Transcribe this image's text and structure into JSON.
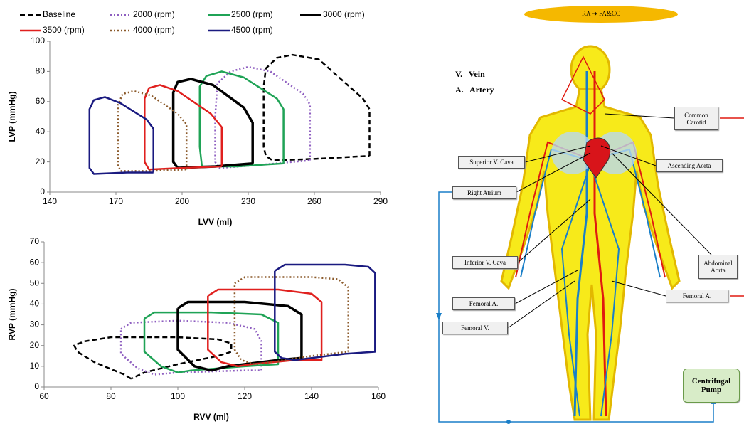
{
  "chart_data": [
    {
      "type": "line",
      "xlabel": "LVV (ml)",
      "ylabel": "LVP (mmHg)",
      "xlim": [
        140,
        290
      ],
      "xticks": [
        140,
        170,
        200,
        230,
        260,
        290
      ],
      "ylim": [
        0,
        100
      ],
      "yticks": [
        0,
        20,
        40,
        60,
        80,
        100
      ],
      "legend": true,
      "series": [
        {
          "name": "Baseline",
          "color": "#000000",
          "dash": "dashed",
          "x": [
            285,
            285,
            282,
            262,
            250,
            243,
            238,
            237,
            237,
            238,
            241,
            260,
            285
          ],
          "values": [
            24,
            55,
            62,
            88,
            91,
            89,
            82,
            70,
            30,
            24,
            21,
            22,
            24
          ]
        },
        {
          "name": "2000 (rpm)",
          "color": "#8e5ec0",
          "dash": "dotted",
          "x": [
            258,
            258,
            255,
            240,
            230,
            222,
            216,
            215,
            215,
            217,
            235,
            258
          ],
          "values": [
            21,
            58,
            65,
            80,
            83,
            80,
            72,
            50,
            20,
            16,
            18,
            21
          ]
        },
        {
          "name": "2500 (rpm)",
          "color": "#1fa356",
          "dash": "solid",
          "x": [
            246,
            246,
            243,
            228,
            218,
            211,
            208,
            208,
            209,
            225,
            246
          ],
          "values": [
            19,
            55,
            62,
            76,
            80,
            77,
            70,
            30,
            17,
            17,
            19
          ]
        },
        {
          "name": "3000 (rpm)",
          "color": "#000000",
          "dash": "solid",
          "x": [
            232,
            232,
            228,
            214,
            204,
            198,
            196,
            196,
            198,
            215,
            232
          ],
          "values": [
            19,
            46,
            56,
            71,
            75,
            73,
            66,
            20,
            16,
            17,
            19
          ]
        },
        {
          "name": "3500 (rpm)",
          "color": "#e0201e",
          "dash": "solid",
          "x": [
            218,
            218,
            213,
            198,
            190,
            185,
            183,
            183,
            185,
            200,
            218
          ],
          "values": [
            17,
            43,
            52,
            67,
            71,
            69,
            62,
            20,
            15,
            16,
            17
          ]
        },
        {
          "name": "4000 (rpm)",
          "color": "#8b5a2b",
          "dash": "dotted",
          "x": [
            202,
            202,
            198,
            186,
            178,
            173,
            171,
            171,
            172,
            185,
            202
          ],
          "values": [
            15,
            45,
            52,
            64,
            67,
            65,
            58,
            18,
            14,
            14,
            15
          ]
        },
        {
          "name": "4500 (rpm)",
          "color": "#1a1a80",
          "dash": "solid",
          "x": [
            187,
            187,
            184,
            172,
            165,
            160,
            158,
            158,
            160,
            175,
            187
          ],
          "values": [
            13,
            42,
            48,
            59,
            63,
            61,
            55,
            16,
            12,
            13,
            13
          ]
        }
      ]
    },
    {
      "type": "line",
      "xlabel": "RVV (ml)",
      "ylabel": "RVP (mmHg)",
      "xlim": [
        60,
        160
      ],
      "xticks": [
        60,
        80,
        100,
        120,
        140,
        160
      ],
      "ylim": [
        0,
        70
      ],
      "yticks": [
        0,
        10,
        20,
        30,
        40,
        50,
        60,
        70
      ],
      "series": [
        {
          "color": "#000000",
          "dash": "dashed",
          "x": [
            86,
            84,
            75,
            70,
            69,
            72,
            80,
            100,
            112,
            116,
            116,
            112,
            100,
            90,
            86
          ],
          "values": [
            4,
            6,
            12,
            17,
            20,
            22,
            24,
            24,
            23,
            21,
            17,
            15,
            11,
            7,
            4
          ]
        },
        {
          "color": "#8e5ec0",
          "dash": "dotted",
          "x": [
            83,
            86,
            100,
            115,
            123,
            125,
            125,
            120,
            100,
            93,
            88,
            83,
            83
          ],
          "values": [
            28,
            31,
            32,
            31,
            28,
            22,
            8,
            8,
            7,
            6,
            9,
            16,
            28
          ]
        },
        {
          "color": "#1fa356",
          "dash": "solid",
          "x": [
            90,
            93,
            110,
            125,
            130,
            130,
            120,
            104,
            100,
            95,
            90,
            90
          ],
          "values": [
            33,
            36,
            36,
            35,
            31,
            11,
            10,
            8,
            7,
            10,
            17,
            33
          ]
        },
        {
          "color": "#000000",
          "dash": "solid",
          "x": [
            100,
            103,
            120,
            133,
            137,
            137,
            130,
            115,
            110,
            105,
            100,
            100
          ],
          "values": [
            38,
            41,
            41,
            39,
            35,
            14,
            13,
            10,
            8,
            10,
            18,
            38
          ]
        },
        {
          "color": "#e0201e",
          "dash": "solid",
          "x": [
            109,
            112,
            130,
            140,
            143,
            143,
            135,
            122,
            118,
            113,
            109,
            109
          ],
          "values": [
            44,
            47,
            47,
            45,
            41,
            13,
            13,
            11,
            10,
            12,
            18,
            44
          ]
        },
        {
          "color": "#8b5a2b",
          "dash": "dotted",
          "x": [
            117,
            120,
            140,
            148,
            151,
            151,
            140,
            128,
            123,
            119,
            117,
            117
          ],
          "values": [
            50,
            53,
            53,
            52,
            48,
            17,
            15,
            12,
            11,
            13,
            18,
            50
          ]
        },
        {
          "color": "#1a1a80",
          "dash": "solid",
          "x": [
            129,
            132,
            150,
            157,
            159,
            159,
            150,
            140,
            135,
            131,
            129,
            129
          ],
          "values": [
            56,
            59,
            59,
            58,
            55,
            17,
            16,
            14,
            13,
            14,
            17,
            56
          ]
        }
      ]
    }
  ],
  "diagram": {
    "title": "RA ➔ FA&CC",
    "key": [
      "V.   Vein",
      "A.   Artery"
    ],
    "labels": [
      "Common Carotid",
      "Superior V. Cava",
      "Ascending Aorta",
      "Right Atrium",
      "Inferior V. Cava",
      "Abdominal Aorta",
      "Femoral A.",
      "Femoral A.",
      "Femoral V.",
      "Centrifugal Pump"
    ]
  }
}
